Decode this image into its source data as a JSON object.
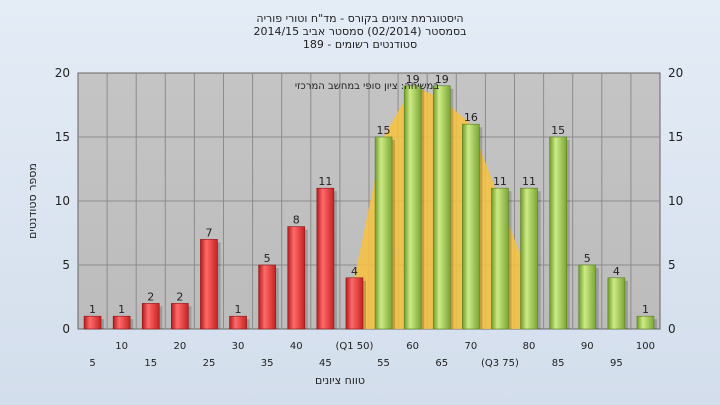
{
  "chart_data": {
    "type": "bar",
    "title_lines": [
      "היסטוגרמת ציונים בקורס - מד\"ח וטורי פוריה",
      "בסמסטר  (02/2014)  סמסטר אביב 2014/15",
      "סטודנטים רשומים - 189"
    ],
    "xlabel": "טווח ציונים",
    "ylabel": "מספר סטודנטים",
    "ylim": [
      0,
      20
    ],
    "yticks": [
      0,
      5,
      10,
      15,
      20
    ],
    "grid": true,
    "annotation": "במשיחה: ציון סופי במחשב המרכזי",
    "categories": [
      5,
      10,
      15,
      20,
      25,
      30,
      35,
      40,
      45,
      50,
      55,
      60,
      65,
      70,
      75,
      80,
      85,
      90,
      95,
      100
    ],
    "tick_labels": [
      "5",
      "10",
      "15",
      "20",
      "25",
      "30",
      "35",
      "40",
      "45",
      "(Q1 50)",
      "55",
      "60",
      "65",
      "70",
      "(Q3 75)",
      "80",
      "85",
      "90",
      "95",
      "100"
    ],
    "values": [
      1,
      1,
      2,
      2,
      7,
      1,
      5,
      8,
      11,
      4,
      15,
      19,
      19,
      16,
      11,
      11,
      15,
      5,
      4,
      1
    ],
    "bar_colors": [
      "#e23b3b",
      "#e23b3b",
      "#e23b3b",
      "#e23b3b",
      "#e23b3b",
      "#e23b3b",
      "#e23b3b",
      "#e23b3b",
      "#e23b3b",
      "#e23b3b",
      "#9cc84c",
      "#9cc84c",
      "#9cc84c",
      "#9cc84c",
      "#9cc84c",
      "#9cc84c",
      "#9cc84c",
      "#9cc84c",
      "#9cc84c",
      "#9cc84c"
    ],
    "band": {
      "color": "#f7c23e",
      "points": [
        [
          50,
          4
        ],
        [
          55,
          15
        ],
        [
          60,
          19
        ],
        [
          65,
          18
        ],
        [
          70,
          16
        ],
        [
          75,
          10
        ],
        [
          80,
          4
        ]
      ]
    }
  }
}
